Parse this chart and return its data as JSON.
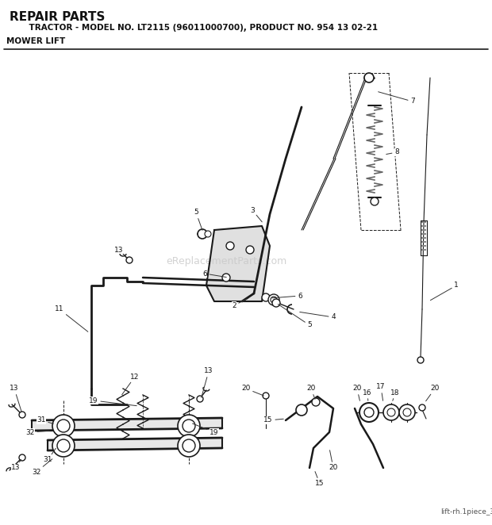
{
  "title_line1": "REPAIR PARTS",
  "title_line2": "    TRACTOR - MODEL NO. LT2115 (96011000700), PRODUCT NO. 954 13 02-21",
  "title_line3": "MOWER LIFT",
  "footer_text": "lift-rh.1piece_3",
  "bg_color": "#ffffff",
  "line_color": "#1a1a1a",
  "watermark_text": "eReplacementParts.com",
  "watermark_color": "#d0d0d0"
}
